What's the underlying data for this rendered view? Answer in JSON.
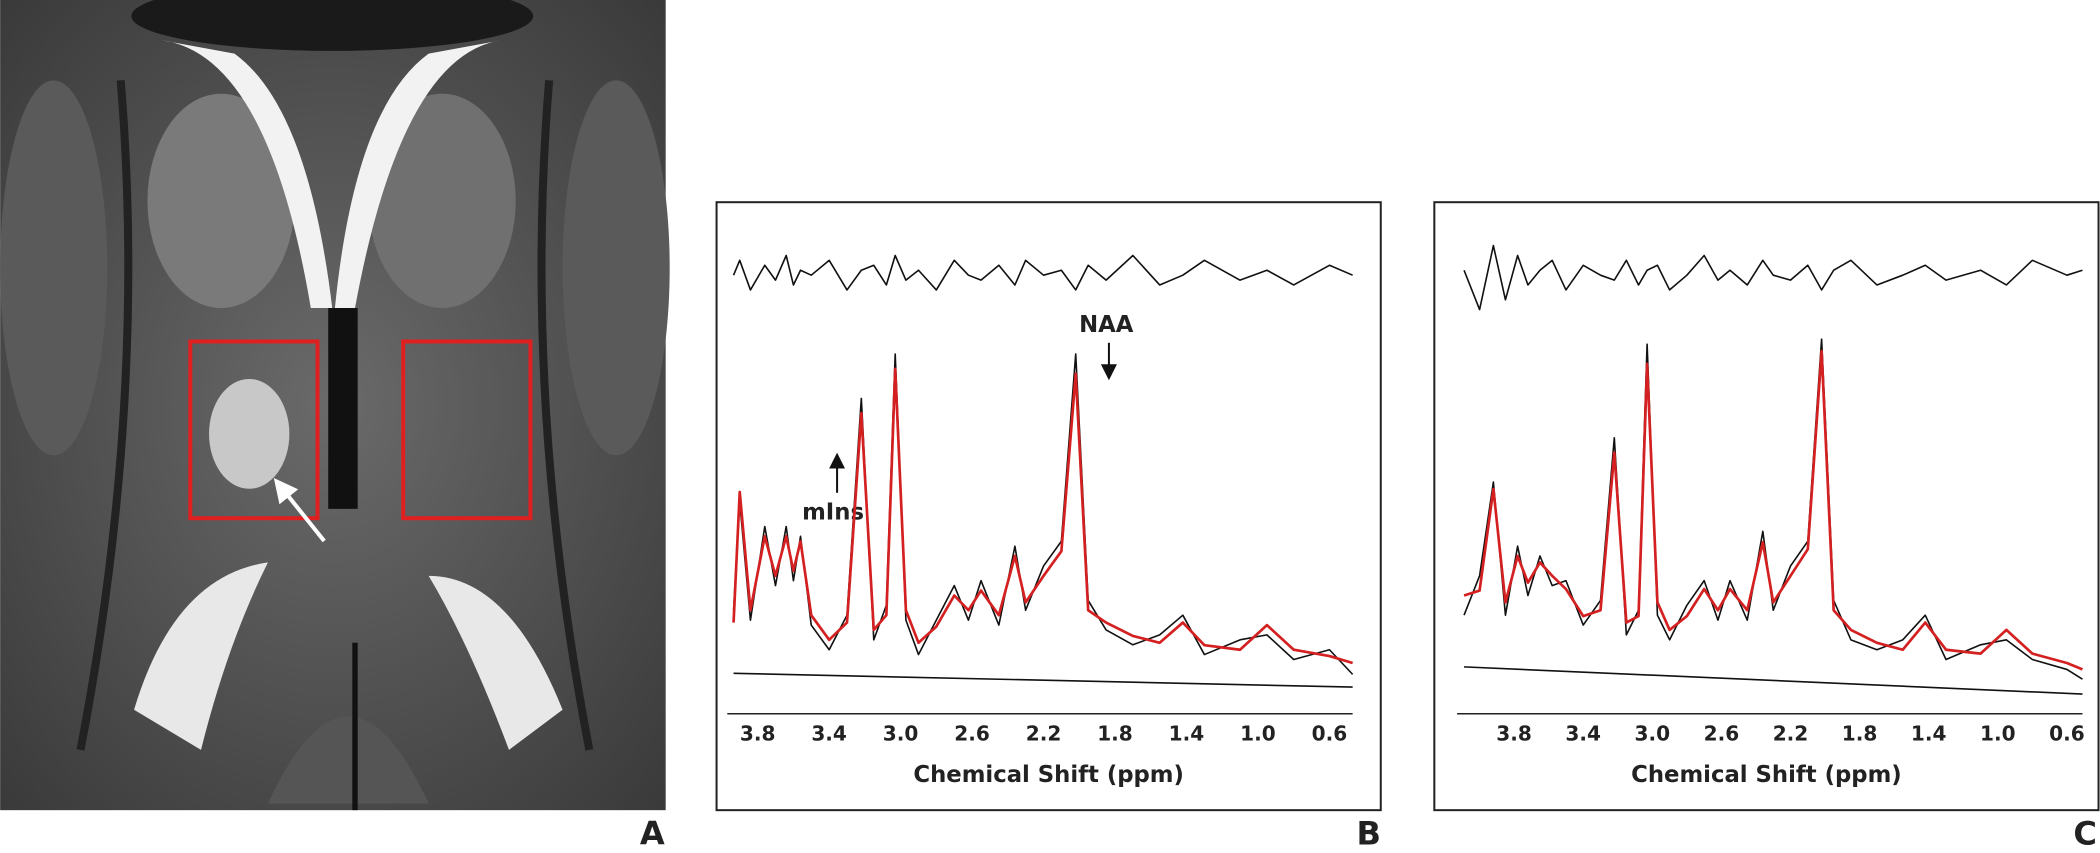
{
  "panel_labels": [
    "A",
    "B",
    "C"
  ],
  "chart_data": [
    {
      "type": "line",
      "x_label": "Chemical Shift (ppm)",
      "annotations": [
        "NAA",
        "mIns"
      ],
      "xlim": [
        3.97,
        0.47
      ],
      "ylim": [
        0,
        100
      ],
      "xticks": [
        3.8,
        3.4,
        {
          "value": 3,
          "label": "3.0"
        },
        2.6,
        2.2,
        1.8,
        1.4,
        {
          "value": 1,
          "label": "1.0"
        },
        0.6
      ],
      "x": [
        3.935,
        3.9,
        3.84,
        3.76,
        3.7,
        3.64,
        3.6,
        3.56,
        3.5,
        3.4,
        3.3,
        3.22,
        3.15,
        3.08,
        3.03,
        2.97,
        2.9,
        2.8,
        2.7,
        2.62,
        2.55,
        2.45,
        2.36,
        2.3,
        2.2,
        2.1,
        2.02,
        1.95,
        1.85,
        1.7,
        1.55,
        1.42,
        1.3,
        1.1,
        0.95,
        0.8,
        0.6,
        0.47
      ],
      "series": [
        {
          "color": "#111111",
          "values": [
            21,
            43,
            19,
            38,
            26,
            38,
            27,
            36,
            18,
            13,
            20,
            64,
            15,
            22,
            73,
            19,
            12,
            19,
            26,
            19,
            27,
            18,
            34,
            21,
            30,
            35,
            73,
            23,
            17,
            14,
            16,
            20,
            12,
            15,
            16,
            11,
            13,
            8
          ]
        },
        {
          "color": "#d42020",
          "values": [
            18.5,
            45,
            21,
            36,
            28,
            36,
            29,
            35,
            20,
            15,
            18.5,
            61,
            17,
            20,
            70,
            21,
            14.4,
            17.7,
            24,
            21,
            25,
            20,
            32,
            22.6,
            28,
            33,
            69,
            21,
            18.5,
            15.8,
            14.4,
            18.5,
            13.9,
            13,
            18,
            13,
            11.7,
            10.3
          ]
        },
        {
          "color": "#111111",
          "values": [
            89,
            92,
            86,
            91,
            88,
            93,
            87,
            90,
            89,
            92,
            86,
            90,
            91,
            87,
            93,
            88,
            90,
            86,
            92,
            89,
            88,
            91,
            87,
            92,
            89,
            90,
            86,
            91,
            88,
            93,
            87,
            89,
            92,
            88,
            90,
            87,
            91,
            89
          ]
        }
      ],
      "baseline": {
        "color": "#111111",
        "x": [
          3.935,
          0.47
        ],
        "values": [
          8.2,
          5.4
        ]
      }
    },
    {
      "type": "line",
      "x_label": "Chemical Shift (ppm)",
      "xlim": [
        4.13,
        0.51
      ],
      "ylim": [
        0,
        100
      ],
      "xticks": [
        3.8,
        3.4,
        {
          "value": 3,
          "label": "3.0"
        },
        2.6,
        2.2,
        1.8,
        1.4,
        {
          "value": 1,
          "label": "1.0"
        },
        0.6
      ],
      "x": [
        4.09,
        4.0,
        3.92,
        3.85,
        3.78,
        3.72,
        3.65,
        3.58,
        3.5,
        3.4,
        3.3,
        3.22,
        3.15,
        3.08,
        3.03,
        2.97,
        2.9,
        2.8,
        2.7,
        2.62,
        2.55,
        2.45,
        2.36,
        2.3,
        2.2,
        2.1,
        2.02,
        1.95,
        1.85,
        1.7,
        1.55,
        1.42,
        1.3,
        1.1,
        0.95,
        0.8,
        0.6,
        0.51
      ],
      "series": [
        {
          "color": "#111111",
          "values": [
            20,
            28,
            47,
            20,
            34,
            24,
            32,
            26,
            27,
            18,
            23,
            56,
            16,
            21,
            75,
            20,
            15,
            22,
            27,
            19,
            27,
            19,
            37,
            21,
            30,
            35,
            76,
            23,
            15,
            13,
            15,
            20,
            11,
            14,
            15,
            11,
            9,
            7
          ]
        },
        {
          "color": "#d42020",
          "values": [
            24,
            25,
            45.6,
            22.6,
            32,
            26.6,
            30.7,
            28,
            25.3,
            19.8,
            21,
            53,
            18.5,
            19.8,
            71,
            22.6,
            17,
            19.8,
            25.3,
            21,
            25.3,
            21,
            34.8,
            22.6,
            28,
            33.4,
            73.6,
            21,
            17,
            14.4,
            13,
            18.5,
            13,
            12.2,
            17,
            12.2,
            10.3,
            9
          ]
        },
        {
          "color": "#111111",
          "values": [
            90,
            82,
            95,
            84,
            93,
            87,
            90,
            92,
            86,
            91,
            89,
            88,
            92,
            87,
            90,
            91,
            86,
            89,
            93,
            88,
            90,
            87,
            92,
            89,
            88,
            91,
            86,
            90,
            92,
            87,
            89,
            91,
            88,
            90,
            87,
            92,
            89,
            90
          ]
        }
      ],
      "baseline": {
        "color": "#111111",
        "x": [
          4.09,
          0.51
        ],
        "values": [
          9.5,
          4
        ]
      }
    }
  ]
}
